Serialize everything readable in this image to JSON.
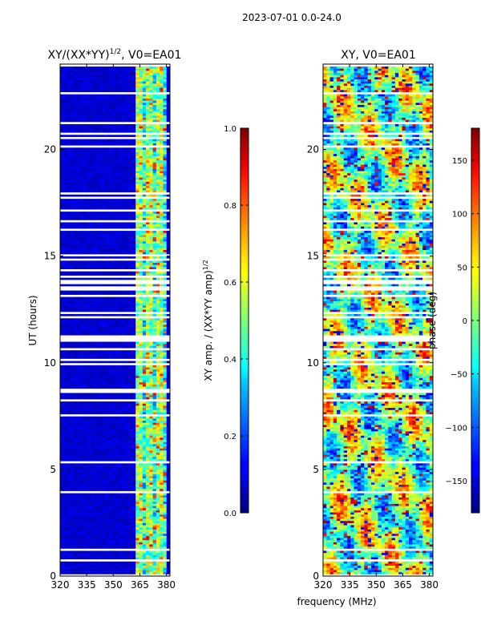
{
  "suptitle": "2023-07-01 0.0-24.0",
  "xlabel_common": "frequency (MHz)",
  "chart_data": [
    {
      "type": "heatmap",
      "title": "XY/(XX*YY)",
      "title_exponent": "1/2",
      "title_suffix": ", V0=EA01",
      "xlabel": "",
      "ylabel": "UT (hours)",
      "xlim": [
        320,
        382
      ],
      "ylim": [
        0,
        24
      ],
      "xticks": [
        320,
        335,
        350,
        365,
        380
      ],
      "yticks": [
        0,
        5,
        10,
        15,
        20
      ],
      "colorbar": {
        "label": "XY amp. / (XX*YY amp)",
        "label_exponent": "1/2",
        "range": [
          0.0,
          1.0
        ],
        "ticks": [
          0.0,
          0.2,
          0.4,
          0.6,
          0.8,
          1.0
        ],
        "tick_labels": [
          "0.0",
          "0.2",
          "0.4",
          "0.6",
          "0.8",
          "1.0"
        ]
      },
      "colormap": "jet",
      "high_signal_band_mhz": [
        363,
        380
      ]
    },
    {
      "type": "heatmap",
      "title": "XY, V0=EA01",
      "xlabel": "frequency (MHz)",
      "ylabel": "",
      "xlim": [
        320,
        382
      ],
      "ylim": [
        0,
        24
      ],
      "xticks": [
        320,
        335,
        350,
        365,
        380
      ],
      "yticks": [
        0,
        5,
        10,
        15,
        20
      ],
      "colorbar": {
        "label": "phase (deg)",
        "range": [
          -180,
          180
        ],
        "ticks": [
          -150,
          -100,
          -50,
          0,
          50,
          100,
          150
        ],
        "tick_labels": [
          "−150",
          "−100",
          "−50",
          "0",
          "50",
          "100",
          "150"
        ]
      },
      "colormap": "jet"
    }
  ],
  "colors": {
    "background": "#ffffff",
    "axes": "#000000",
    "blank_row": "#ffffff"
  }
}
